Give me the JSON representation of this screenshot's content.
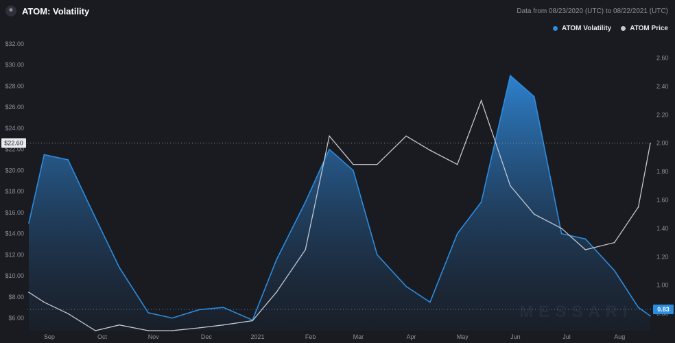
{
  "header": {
    "title": "ATOM: Volatility",
    "range_text": "Data from 08/23/2020 (UTC) to 08/22/2021 (UTC)"
  },
  "watermark": "MESSARI",
  "colors": {
    "background": "#1a1b20",
    "volatility": "#2b8ce0",
    "price": "#c5c8d1"
  },
  "chart_data": {
    "type": "area",
    "title": "ATOM: Volatility",
    "x_labels": [
      "Sep",
      "Oct",
      "Nov",
      "Dec",
      "2021",
      "Feb",
      "Mar",
      "Apr",
      "May",
      "Jun",
      "Jul",
      "Aug"
    ],
    "x": [
      "2020-08-23",
      "2020-09-01",
      "2020-09-15",
      "2020-10-01",
      "2020-10-15",
      "2020-11-01",
      "2020-11-15",
      "2020-12-01",
      "2020-12-15",
      "2021-01-01",
      "2021-01-15",
      "2021-02-01",
      "2021-02-15",
      "2021-03-01",
      "2021-03-15",
      "2021-04-01",
      "2021-04-15",
      "2021-05-01",
      "2021-05-15",
      "2021-06-01",
      "2021-06-15",
      "2021-07-01",
      "2021-07-15",
      "2021-08-01",
      "2021-08-15",
      "2021-08-22"
    ],
    "series": [
      {
        "name": "ATOM Volatility",
        "axis": "left",
        "values": [
          15.0,
          21.5,
          21.0,
          15.5,
          10.8,
          6.5,
          6.0,
          6.8,
          7.0,
          5.8,
          11.5,
          17.0,
          22.0,
          20.0,
          12.0,
          9.0,
          7.5,
          14.0,
          17.0,
          29.0,
          27.0,
          14.0,
          13.5,
          10.5,
          7.0,
          6.2
        ]
      },
      {
        "name": "ATOM Price",
        "axis": "right",
        "values": [
          0.95,
          0.88,
          0.8,
          0.68,
          0.72,
          0.68,
          0.68,
          0.7,
          0.72,
          0.75,
          0.95,
          1.25,
          2.05,
          1.85,
          1.85,
          2.05,
          1.95,
          1.85,
          2.3,
          1.7,
          1.5,
          1.4,
          1.25,
          1.3,
          1.55,
          2.0
        ]
      }
    ],
    "y_left": {
      "ticks": [
        "$6.00",
        "$8.00",
        "$10.00",
        "$12.00",
        "$14.00",
        "$16.00",
        "$18.00",
        "$20.00",
        "$22.00",
        "$24.00",
        "$26.00",
        "$28.00",
        "$30.00",
        "$32.00"
      ],
      "ylim": [
        4.8,
        32.0
      ]
    },
    "y_right": {
      "ticks": [
        "0.80",
        "1.00",
        "1.20",
        "1.40",
        "1.60",
        "1.80",
        "2.00",
        "2.20",
        "2.40",
        "2.60"
      ],
      "ylim": [
        0.68,
        2.66
      ]
    },
    "markers": {
      "left_value": 22.6,
      "left_label": "$22.60",
      "right_value": 0.83,
      "right_label": "0.83"
    },
    "legend": "top-right",
    "grid": false
  }
}
